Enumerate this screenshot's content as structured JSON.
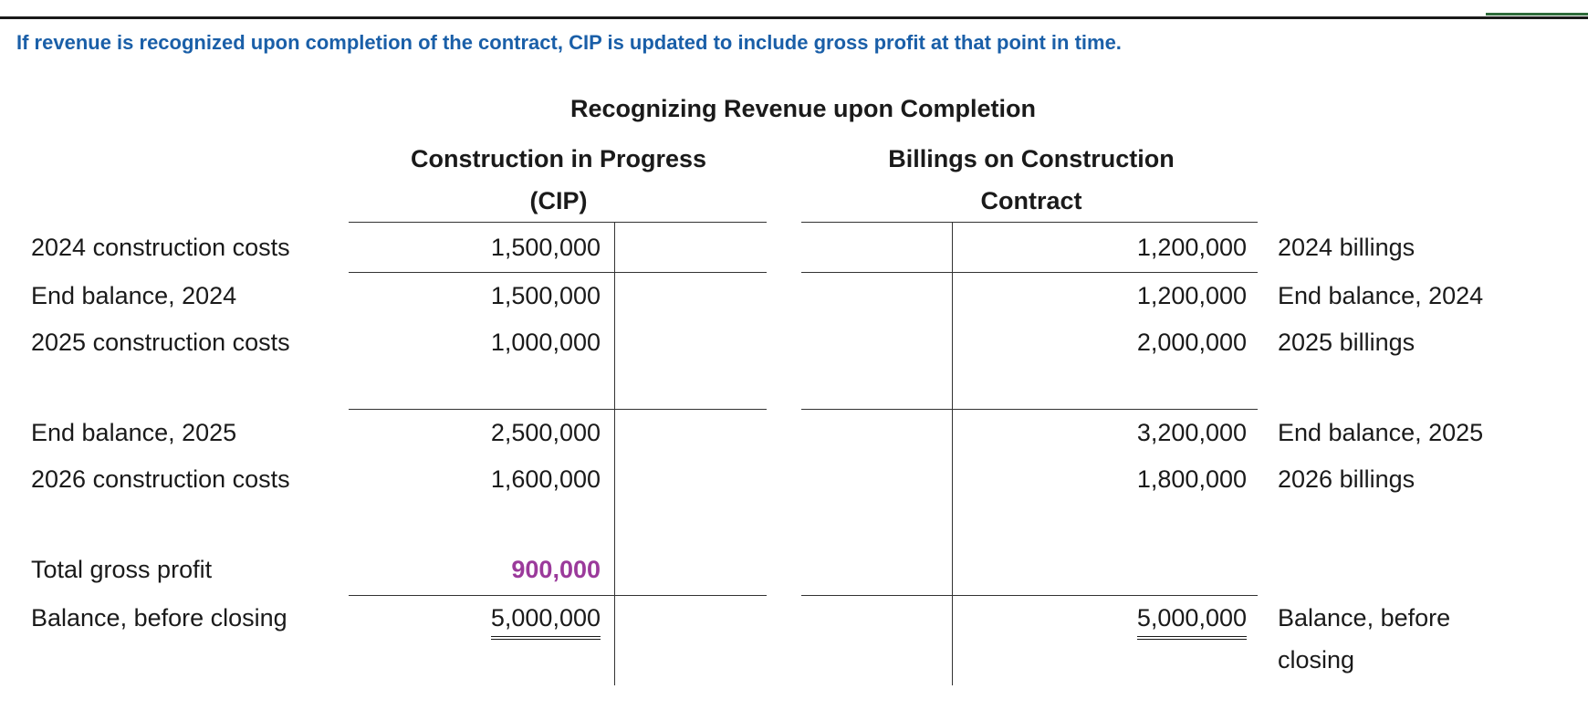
{
  "colors": {
    "caption": "#1a5fa8",
    "highlight": "#9b3a9b",
    "corner_mark": "#2e6b3a"
  },
  "caption": "If revenue is recognized upon completion of the contract, CIP is updated to include gross profit at that point in time.",
  "title": "Recognizing Revenue upon Completion",
  "cip_account": {
    "title_line1": "Construction in Progress",
    "title_line2": "(CIP)"
  },
  "billings_account": {
    "title_line1": "Billings on Construction",
    "title_line2": "Contract"
  },
  "cip_rows": [
    {
      "label": "2024 construction costs",
      "value": "1,500,000"
    },
    {
      "label": "End balance, 2024",
      "value": "1,500,000"
    },
    {
      "label": "2025 construction costs",
      "value": "1,000,000"
    },
    {
      "label": "End balance, 2025",
      "value": "2,500,000"
    },
    {
      "label": "2026 construction costs",
      "value": "1,600,000"
    },
    {
      "label": "Total gross profit",
      "value": "900,000"
    },
    {
      "label": "Balance, before closing",
      "value": "5,000,000"
    }
  ],
  "billing_rows": [
    {
      "label": "2024 billings",
      "value": "1,200,000"
    },
    {
      "label": "End balance, 2024",
      "value": "1,200,000"
    },
    {
      "label": "2025 billings",
      "value": "2,000,000"
    },
    {
      "label": "End balance, 2025",
      "value": "3,200,000"
    },
    {
      "label": "2026 billings",
      "value": "1,800,000"
    },
    {
      "label": "Balance, before closing",
      "value": "5,000,000"
    }
  ]
}
